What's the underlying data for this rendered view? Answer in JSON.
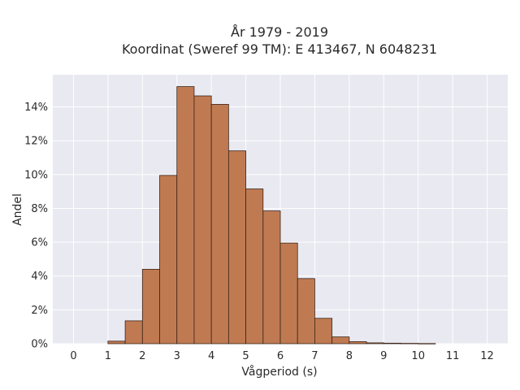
{
  "chart_data": {
    "type": "bar",
    "title_line1": "År 1979 - 2019",
    "title_line2": "Koordinat (Sweref 99 TM): E 413467, N 6048231",
    "xlabel": "Vågperiod (s)",
    "ylabel": "Andel",
    "bin_width": 0.5,
    "bin_starts": [
      1.0,
      1.5,
      2.0,
      2.5,
      3.0,
      3.5,
      4.0,
      4.5,
      5.0,
      5.5,
      6.0,
      6.5,
      7.0,
      7.5,
      8.0,
      8.5,
      9.0,
      9.5,
      10.0
    ],
    "values": [
      0.15,
      1.35,
      4.4,
      9.95,
      15.2,
      14.65,
      14.15,
      11.4,
      9.15,
      7.85,
      5.95,
      3.85,
      1.5,
      0.4,
      0.12,
      0.05,
      0.03,
      0.02,
      0.01
    ],
    "xlim": [
      -0.6,
      12.6
    ],
    "ylim": [
      0,
      15.9
    ],
    "x_ticks": [
      "0",
      "1",
      "2",
      "3",
      "4",
      "5",
      "6",
      "7",
      "8",
      "9",
      "10",
      "11",
      "12"
    ],
    "y_ticks": [
      "0%",
      "2%",
      "4%",
      "6%",
      "8%",
      "10%",
      "12%",
      "14%"
    ],
    "grid": true,
    "colors": {
      "bar_fill": "#c07a52",
      "bar_edge": "#3a2418",
      "plot_bg": "#e9e9f1",
      "grid": "#ffffff"
    }
  }
}
